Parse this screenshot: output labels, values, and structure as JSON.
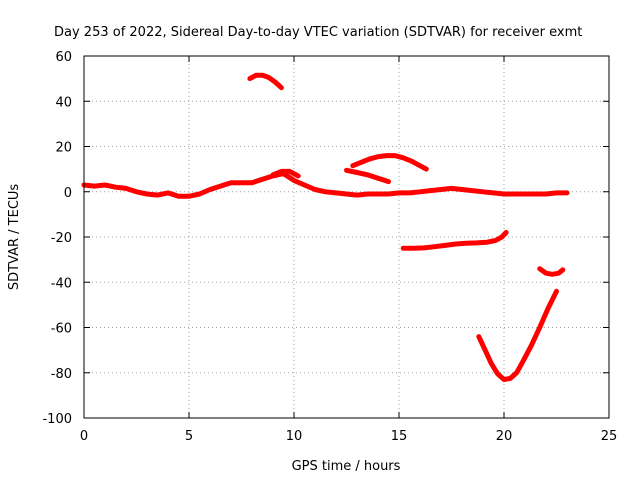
{
  "chart_data": {
    "type": "line",
    "title": "Day 253 of 2022, Sidereal Day-to-day VTEC variation (SDTVAR) for receiver exmt",
    "xlabel": "GPS time / hours",
    "ylabel": "SDTVAR / TECUs",
    "xlim": [
      0,
      25
    ],
    "ylim": [
      -100,
      60
    ],
    "xticks": [
      0,
      5,
      10,
      15,
      20,
      25
    ],
    "yticks": [
      -100,
      -80,
      -60,
      -40,
      -20,
      0,
      20,
      40,
      60
    ],
    "grid": true,
    "legend": "none",
    "color": "#ff0000",
    "series": [
      {
        "name": "arc-main",
        "x": [
          0,
          0.5,
          1,
          1.5,
          2,
          2.5,
          3,
          3.5,
          4,
          4.5,
          5,
          5.5,
          6,
          6.5,
          7,
          7.5,
          8,
          8.5,
          9,
          9.5,
          10,
          10.5,
          11,
          11.5,
          12,
          12.5,
          13,
          13.5,
          14,
          14.5,
          15,
          15.5,
          16,
          16.5,
          17,
          17.5,
          18,
          18.5,
          19,
          19.5,
          20,
          20.5,
          21,
          21.5,
          22,
          22.5,
          23
        ],
        "y": [
          3,
          2.5,
          3,
          2,
          1.5,
          0,
          -1,
          -1.5,
          -0.5,
          -2,
          -2,
          -1,
          1,
          2.5,
          4,
          4,
          4,
          5.5,
          7,
          8,
          5,
          3,
          1,
          0,
          -0.5,
          -1,
          -1.5,
          -1,
          -1,
          -1,
          -0.5,
          -0.5,
          0,
          0.5,
          1,
          1.5,
          1,
          0.5,
          0,
          -0.5,
          -1,
          -1,
          -1,
          -1,
          -1,
          -0.5,
          -0.5
        ]
      },
      {
        "name": "arc-top",
        "x": [
          7.9,
          8.2,
          8.5,
          8.8,
          9.1,
          9.4
        ],
        "y": [
          50,
          51.5,
          51.5,
          50.5,
          48.5,
          46
        ]
      },
      {
        "name": "arc-9",
        "x": [
          9.0,
          9.4,
          9.8,
          10.2
        ],
        "y": [
          7.5,
          9,
          9,
          7
        ]
      },
      {
        "name": "arc-12",
        "x": [
          12.5,
          13.0,
          13.5,
          14.0,
          14.5
        ],
        "y": [
          9.5,
          8.5,
          7.5,
          6,
          4.5
        ]
      },
      {
        "name": "arc-13",
        "x": [
          12.8,
          13.2,
          13.6,
          14.0,
          14.4,
          14.8,
          15.2,
          15.6,
          16.0,
          16.3
        ],
        "y": [
          11.5,
          13,
          14.5,
          15.5,
          16,
          16,
          15,
          13.5,
          11.5,
          10
        ]
      },
      {
        "name": "arc-15",
        "x": [
          15.2,
          15.7,
          16.2,
          16.7,
          17.2,
          17.7,
          18.2,
          18.7,
          19.2,
          19.6,
          19.9,
          20.1
        ],
        "y": [
          -25,
          -25,
          -24.8,
          -24.3,
          -23.7,
          -23.1,
          -22.8,
          -22.6,
          -22.3,
          -21.5,
          -20,
          -18
        ]
      },
      {
        "name": "arc-22",
        "x": [
          21.7,
          22.0,
          22.3,
          22.6,
          22.8
        ],
        "y": [
          -34,
          -36,
          -36.5,
          -36,
          -34.5
        ]
      },
      {
        "name": "arc-deep",
        "x": [
          18.8,
          19.1,
          19.4,
          19.7,
          20.0,
          20.3,
          20.6,
          20.9,
          21.3,
          21.7,
          22.1,
          22.5
        ],
        "y": [
          -64,
          -70,
          -76,
          -80.5,
          -83,
          -82.5,
          -80,
          -75,
          -68,
          -60,
          -51.5,
          -44
        ]
      }
    ]
  }
}
